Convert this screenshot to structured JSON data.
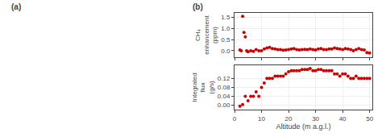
{
  "chart_data": [
    {
      "type": "scatter",
      "x": [
        2,
        2.5,
        3,
        3.5,
        4,
        4.5,
        5,
        6,
        7,
        8,
        9,
        10,
        11,
        12,
        13,
        14,
        15,
        16,
        17,
        18,
        19,
        20,
        21,
        22,
        23,
        24,
        25,
        26,
        27,
        28,
        29,
        30,
        31,
        32,
        33,
        34,
        35,
        36,
        37,
        38,
        39,
        40,
        41,
        42,
        43,
        44,
        45,
        46,
        47,
        48,
        49,
        50
      ],
      "values": [
        0.03,
        0.0,
        1.55,
        0.82,
        0.62,
        0.0,
        -0.05,
        0.0,
        -0.03,
        0.05,
        0.0,
        0.0,
        0.08,
        0.12,
        0.15,
        0.1,
        0.08,
        0.05,
        0.05,
        0.02,
        0.03,
        0.05,
        0.08,
        0.1,
        0.05,
        0.03,
        0.05,
        0.06,
        0.05,
        0.08,
        0.05,
        0.03,
        0.08,
        0.1,
        0.05,
        0.05,
        0.08,
        0.08,
        0.12,
        0.1,
        0.08,
        0.05,
        0.1,
        0.08,
        0.05,
        0.0,
        0.05,
        0.1,
        0.05,
        0.03,
        -0.08,
        -0.1
      ],
      "color": "#cc0000",
      "ylabel": "CH₄\nenhancement\n(ppm)",
      "xlim": [
        0,
        51
      ],
      "xticks": [
        0,
        10,
        20,
        30,
        40,
        50
      ],
      "ylim": [
        -0.3,
        1.7
      ],
      "yticks": [
        {
          "value": 0,
          "label": "0.0"
        },
        0.5,
        {
          "value": 1,
          "label": "1.0"
        },
        1.5
      ],
      "grid": true,
      "tick_labels": "y",
      "annotations": [
        "(a)",
        "(b)"
      ]
    },
    {
      "type": "scatter",
      "x": [
        2,
        3,
        4,
        5,
        6,
        7,
        8,
        9,
        10,
        11,
        12,
        13,
        14,
        15,
        16,
        17,
        18,
        19,
        20,
        21,
        22,
        23,
        24,
        25,
        26,
        27,
        28,
        29,
        30,
        31,
        32,
        33,
        34,
        35,
        36,
        37,
        38,
        39,
        40,
        41,
        42,
        43,
        44,
        45,
        46,
        47,
        48,
        49,
        50
      ],
      "values": [
        -0.005,
        0.003,
        0.04,
        0.02,
        0.04,
        0.04,
        0.06,
        0.04,
        0.08,
        0.1,
        0.12,
        0.12,
        0.12,
        0.13,
        0.13,
        0.13,
        0.13,
        0.14,
        0.15,
        0.155,
        0.155,
        0.155,
        0.155,
        0.16,
        0.16,
        0.16,
        0.165,
        0.155,
        0.155,
        0.16,
        0.16,
        0.155,
        0.155,
        0.155,
        0.155,
        0.14,
        0.14,
        0.13,
        0.14,
        0.14,
        0.13,
        0.12,
        0.12,
        0.13,
        0.12,
        0.12,
        0.12,
        0.12,
        0.12
      ],
      "color": "#cc0000",
      "xlabel": "Altitude (m a.g.l.)",
      "ylabel": "Integrated\nflux\n(g/s)",
      "xlim": [
        0,
        51
      ],
      "xticks": [
        0,
        10,
        20,
        30,
        40,
        50
      ],
      "ylim": [
        -0.02,
        0.18
      ],
      "yticks": [
        {
          "value": 0,
          "label": "0.00"
        },
        0.04,
        0.08,
        0.12
      ],
      "grid": true
    }
  ]
}
